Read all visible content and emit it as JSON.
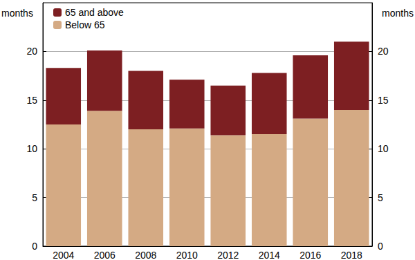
{
  "chart_data": {
    "type": "bar",
    "ylabel": "months",
    "categories": [
      "2004",
      "2006",
      "2008",
      "2010",
      "2012",
      "2014",
      "2016",
      "2018"
    ],
    "series": [
      {
        "name": "Below 65",
        "color": "#d4aa84",
        "values": [
          12.5,
          13.9,
          12.0,
          12.1,
          11.4,
          11.5,
          13.1,
          14.0
        ]
      },
      {
        "name": "65 and above",
        "color": "#7d1f22",
        "values": [
          5.8,
          6.2,
          6.0,
          5.0,
          5.1,
          6.3,
          6.5,
          7.0
        ]
      }
    ],
    "stacked": true,
    "ylim": [
      0,
      25
    ],
    "yticks": [
      0,
      5,
      10,
      15,
      20
    ],
    "grid": true,
    "legend": "upper left"
  }
}
